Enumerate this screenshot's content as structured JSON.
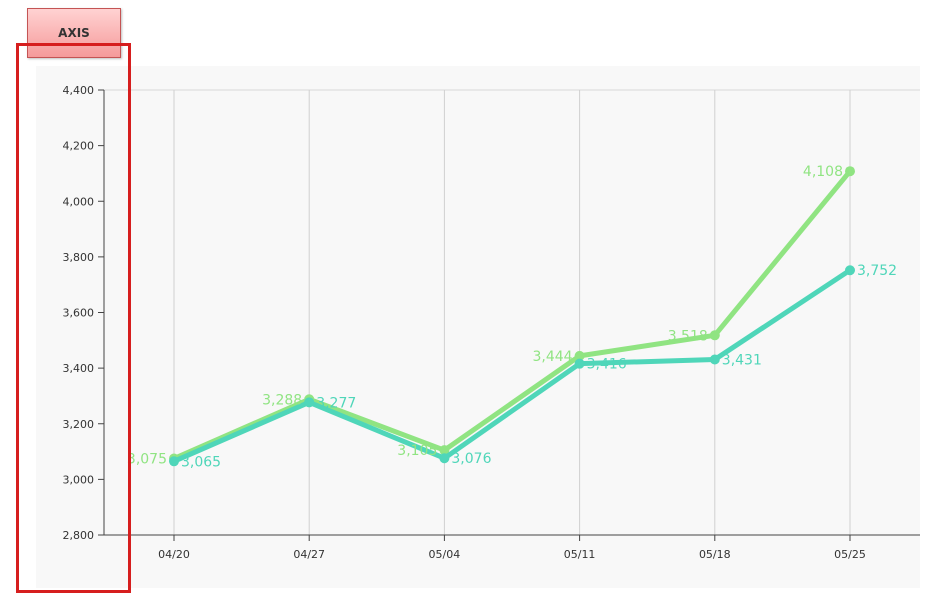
{
  "badge": {
    "label": "AXIS"
  },
  "chart_data": {
    "type": "line",
    "title": "",
    "xlabel": "",
    "ylabel": "",
    "categories": [
      "04/20",
      "04/27",
      "05/04",
      "05/11",
      "05/18",
      "05/25"
    ],
    "ylim": [
      2800,
      4400
    ],
    "yticks": [
      2800,
      3000,
      3200,
      3400,
      3600,
      3800,
      4000,
      4200,
      4400
    ],
    "ytick_labels": [
      "2,800",
      "3,000",
      "3,200",
      "3,400",
      "3,600",
      "3,800",
      "4,000",
      "4,200",
      "4,400"
    ],
    "grid": "vertical",
    "series": [
      {
        "values": [
          3075,
          3288,
          3105,
          3444,
          3518,
          4108
        ],
        "labels": [
          "3,075",
          "3,288",
          "3,105",
          "3,444",
          "3,518",
          "4,108"
        ],
        "color": "#90e482",
        "label_side": "left"
      },
      {
        "values": [
          3065,
          3277,
          3076,
          3416,
          3431,
          3752
        ],
        "labels": [
          "3,065",
          "3,277",
          "3,076",
          "3,416",
          "3,431",
          "3,752"
        ],
        "color": "#4fd6b9",
        "label_side": "right"
      }
    ]
  }
}
